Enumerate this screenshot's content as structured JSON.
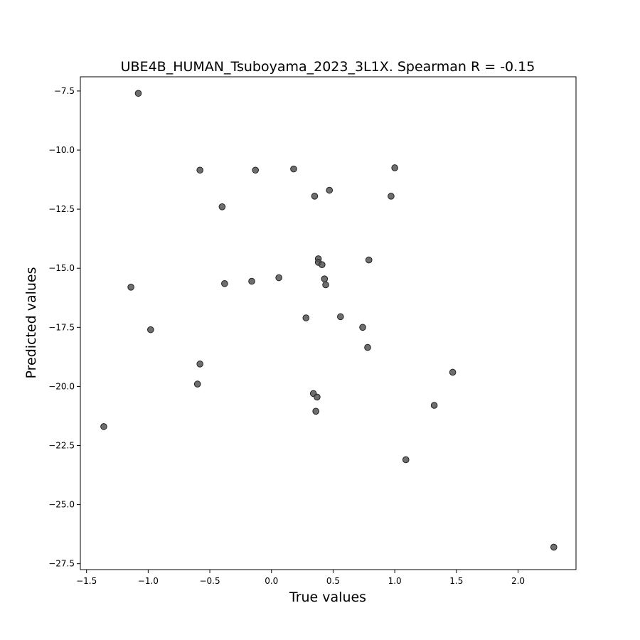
{
  "chart_data": {
    "type": "scatter",
    "title": "UBE4B_HUMAN_Tsuboyama_2023_3L1X. Spearman R = -0.15",
    "xlabel": "True values",
    "ylabel": "Predicted values",
    "xlim": [
      -1.55,
      2.47
    ],
    "ylim": [
      -27.75,
      -6.9
    ],
    "xticks": [
      -1.5,
      -1.0,
      -0.5,
      0.0,
      0.5,
      1.0,
      1.5,
      2.0
    ],
    "xtick_labels": [
      "−1.5",
      "−1.0",
      "−0.5",
      "0.0",
      "0.5",
      "1.0",
      "1.5",
      "2.0"
    ],
    "yticks": [
      -27.5,
      -25.0,
      -22.5,
      -20.0,
      -17.5,
      -15.0,
      -12.5,
      -10.0,
      -7.5
    ],
    "ytick_labels": [
      "−27.5",
      "−25.0",
      "−22.5",
      "−20.0",
      "−17.5",
      "−15.0",
      "−12.5",
      "−10.0",
      "−7.5"
    ],
    "grid": false,
    "marker_color": "#555555",
    "points": [
      {
        "x": -1.08,
        "y": -7.6
      },
      {
        "x": -0.58,
        "y": -10.85
      },
      {
        "x": -0.13,
        "y": -10.85
      },
      {
        "x": 0.18,
        "y": -10.8
      },
      {
        "x": 1.0,
        "y": -10.75
      },
      {
        "x": 0.47,
        "y": -11.7
      },
      {
        "x": 0.35,
        "y": -11.95
      },
      {
        "x": 0.97,
        "y": -11.95
      },
      {
        "x": -0.4,
        "y": -12.4
      },
      {
        "x": 0.38,
        "y": -14.6
      },
      {
        "x": 0.38,
        "y": -14.75
      },
      {
        "x": 0.41,
        "y": -14.85
      },
      {
        "x": 0.79,
        "y": -14.65
      },
      {
        "x": -1.14,
        "y": -15.8
      },
      {
        "x": -0.38,
        "y": -15.65
      },
      {
        "x": -0.16,
        "y": -15.55
      },
      {
        "x": 0.06,
        "y": -15.4
      },
      {
        "x": 0.43,
        "y": -15.45
      },
      {
        "x": 0.44,
        "y": -15.7
      },
      {
        "x": -0.98,
        "y": -17.6
      },
      {
        "x": 0.28,
        "y": -17.1
      },
      {
        "x": 0.56,
        "y": -17.05
      },
      {
        "x": 0.74,
        "y": -17.5
      },
      {
        "x": 0.78,
        "y": -18.35
      },
      {
        "x": -0.58,
        "y": -19.05
      },
      {
        "x": -0.6,
        "y": -19.9
      },
      {
        "x": 0.34,
        "y": -20.3
      },
      {
        "x": 0.37,
        "y": -20.45
      },
      {
        "x": 0.36,
        "y": -21.05
      },
      {
        "x": 1.47,
        "y": -19.4
      },
      {
        "x": 1.32,
        "y": -20.8
      },
      {
        "x": -1.36,
        "y": -21.7
      },
      {
        "x": 1.09,
        "y": -23.1
      },
      {
        "x": 2.29,
        "y": -26.8
      }
    ]
  }
}
